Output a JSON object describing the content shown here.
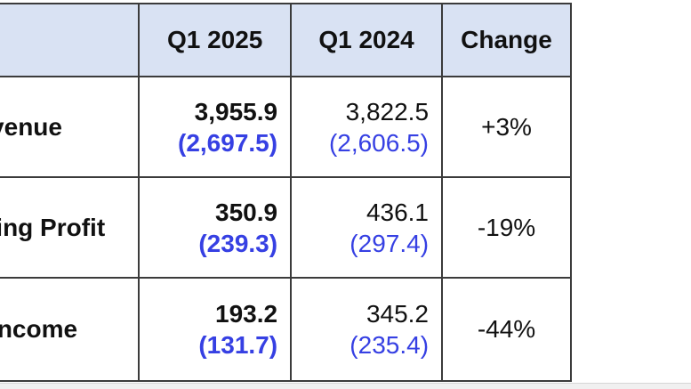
{
  "table": {
    "header": {
      "metric": "",
      "q1_2025": "Q1 2025",
      "q1_2024": "Q1 2024",
      "change": "Change"
    },
    "rows": [
      {
        "label": "Revenue",
        "q1_2025": "3,955.9",
        "q1_2025_secondary": "(2,697.5)",
        "q1_2024": "3,822.5",
        "q1_2024_secondary": "(2,606.5)",
        "change": "+3%"
      },
      {
        "label": "Operating Profit",
        "q1_2025": "350.9",
        "q1_2025_secondary": "(239.3)",
        "q1_2024": "436.1",
        "q1_2024_secondary": "(297.4)",
        "change": "-19%"
      },
      {
        "label": "Net Income",
        "q1_2025": "193.2",
        "q1_2025_secondary": "(131.7)",
        "q1_2024": "345.2",
        "q1_2024_secondary": "(235.4)",
        "change": "-44%"
      }
    ],
    "colors": {
      "header_bg": "#d9e2f3",
      "border": "#3b3b3b",
      "primary_text": "#111111",
      "secondary_text": "#3640e3"
    }
  },
  "chart_data": {
    "type": "table",
    "columns": [
      "",
      "Q1 2025",
      "Q1 2024",
      "Change"
    ],
    "rows": [
      [
        "Revenue",
        "3,955.9",
        "(2,697.5)",
        "3,822.5",
        "(2,606.5)",
        "+3%"
      ],
      [
        "Operating Profit",
        "350.9",
        "(239.3)",
        "436.1",
        "(297.4)",
        "-19%"
      ],
      [
        "Net Income",
        "193.2",
        "(131.7)",
        "345.2",
        "(235.4)",
        "-44%"
      ]
    ]
  }
}
